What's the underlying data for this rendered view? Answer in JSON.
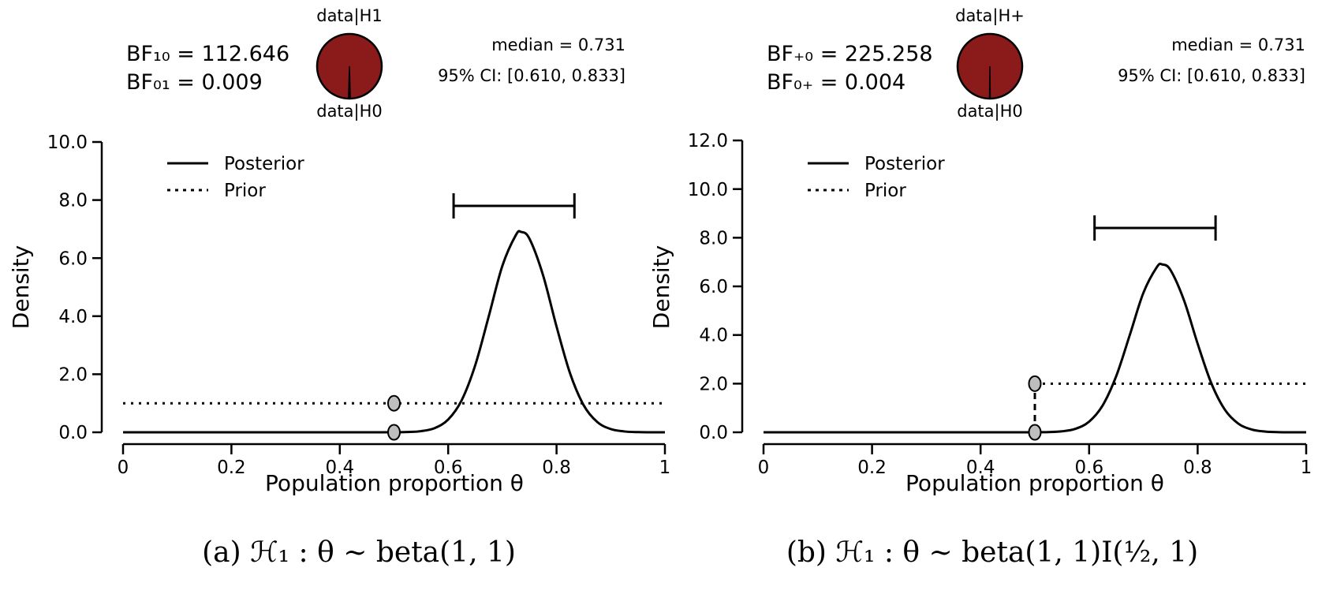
{
  "colors": {
    "background": "#ffffff",
    "line": "#000000",
    "pie_fill": "#8B1A1A",
    "pie_slice": "#000000",
    "marker_fill": "#BEBEBE"
  },
  "panels": [
    {
      "bf_line1": "BF₁₀ = 112.646",
      "bf_line2": "BF₀₁ = 0.009",
      "pie_top_label": "data|H1",
      "pie_bottom_label": "data|H0",
      "median_text": "median = 0.731",
      "ci_text": "95% CI: [0.610, 0.833]",
      "legend_posterior": "Posterior",
      "legend_prior": "Prior",
      "ylabel": "Density",
      "xlabel": "Population proportion θ",
      "caption": "(a) ℋ₁ : θ ∼ beta(1, 1)"
    },
    {
      "bf_line1": "BF₊₀ = 225.258",
      "bf_line2": "BF₀₊ = 0.004",
      "pie_top_label": "data|H+",
      "pie_bottom_label": "data|H0",
      "median_text": "median = 0.731",
      "ci_text": "95% CI: [0.610, 0.833]",
      "legend_posterior": "Posterior",
      "legend_prior": "Prior",
      "ylabel": "Density",
      "xlabel": "Population proportion θ",
      "caption": "(b) ℋ₁ : θ ∼ beta(1, 1)I(¹⁄₂, 1)"
    }
  ],
  "chart_data": [
    {
      "id": "a",
      "type": "line",
      "xlabel": "Population proportion θ",
      "ylabel": "Density",
      "xlim": [
        0,
        1
      ],
      "ylim": [
        0,
        10
      ],
      "x_ticks": [
        0,
        0.2,
        0.4,
        0.6,
        0.8,
        1
      ],
      "x_tick_labels": [
        "0",
        "0.2",
        "0.4",
        "0.6",
        "0.8",
        "1"
      ],
      "y_ticks": [
        0,
        2,
        4,
        6,
        8,
        10
      ],
      "y_tick_labels": [
        "0.0",
        "2.0",
        "4.0",
        "6.0",
        "8.0",
        "10.0"
      ],
      "median": 0.731,
      "ci": {
        "level": "95%",
        "lower": 0.61,
        "upper": 0.833,
        "bar_height_density": 7.8
      },
      "bayes_factors": {
        "BF10": 112.646,
        "BF01": 0.009
      },
      "pie": {
        "labels": [
          "data|H1",
          "data|H0"
        ],
        "values": [
          0.991,
          0.009
        ]
      },
      "posterior": {
        "name": "Posterior",
        "style": "solid",
        "points": [
          [
            0,
            0
          ],
          [
            0.1,
            0
          ],
          [
            0.2,
            0
          ],
          [
            0.3,
            0
          ],
          [
            0.4,
            0
          ],
          [
            0.45,
            0
          ],
          [
            0.475,
            0.001
          ],
          [
            0.5,
            0.002
          ],
          [
            0.525,
            0.009
          ],
          [
            0.55,
            0.039
          ],
          [
            0.575,
            0.144
          ],
          [
            0.6,
            0.439
          ],
          [
            0.625,
            1.107
          ],
          [
            0.65,
            2.314
          ],
          [
            0.675,
            4.003
          ],
          [
            0.7,
            5.733
          ],
          [
            0.725,
            6.797
          ],
          [
            0.735,
            6.9
          ],
          [
            0.75,
            6.669
          ],
          [
            0.775,
            5.417
          ],
          [
            0.8,
            3.642
          ],
          [
            0.825,
            2.027
          ],
          [
            0.85,
            0.934
          ],
          [
            0.875,
            0.356
          ],
          [
            0.9,
            0.112
          ],
          [
            0.925,
            0.029
          ],
          [
            0.95,
            0.006
          ],
          [
            0.975,
            0.001
          ],
          [
            1,
            0
          ]
        ]
      },
      "prior": {
        "name": "Prior",
        "segments": [
          {
            "style": "dotted",
            "points": [
              [
                0,
                1
              ],
              [
                1,
                1
              ]
            ]
          }
        ]
      },
      "markers": [
        [
          0.5,
          1
        ],
        [
          0.5,
          0
        ]
      ]
    },
    {
      "id": "b",
      "type": "line",
      "xlabel": "Population proportion θ",
      "ylabel": "Density",
      "xlim": [
        0,
        1
      ],
      "ylim": [
        0,
        12
      ],
      "x_ticks": [
        0,
        0.2,
        0.4,
        0.6,
        0.8,
        1
      ],
      "x_tick_labels": [
        "0",
        "0.2",
        "0.4",
        "0.6",
        "0.8",
        "1"
      ],
      "y_ticks": [
        0,
        2,
        4,
        6,
        8,
        10,
        12
      ],
      "y_tick_labels": [
        "0.0",
        "2.0",
        "4.0",
        "6.0",
        "8.0",
        "10.0",
        "12.0"
      ],
      "median": 0.731,
      "ci": {
        "level": "95%",
        "lower": 0.61,
        "upper": 0.833,
        "bar_height_density": 8.4
      },
      "bayes_factors": {
        "BF_plus_0": 225.258,
        "BF_0_plus": 0.004
      },
      "pie": {
        "labels": [
          "data|H+",
          "data|H0"
        ],
        "values": [
          0.996,
          0.004
        ]
      },
      "posterior": {
        "name": "Posterior",
        "style": "solid",
        "points": [
          [
            0,
            0
          ],
          [
            0.1,
            0
          ],
          [
            0.2,
            0
          ],
          [
            0.3,
            0
          ],
          [
            0.4,
            0
          ],
          [
            0.45,
            0
          ],
          [
            0.475,
            0.001
          ],
          [
            0.5,
            0.002
          ],
          [
            0.525,
            0.009
          ],
          [
            0.55,
            0.039
          ],
          [
            0.575,
            0.144
          ],
          [
            0.6,
            0.439
          ],
          [
            0.625,
            1.107
          ],
          [
            0.65,
            2.314
          ],
          [
            0.675,
            4.003
          ],
          [
            0.7,
            5.733
          ],
          [
            0.725,
            6.797
          ],
          [
            0.735,
            6.9
          ],
          [
            0.75,
            6.669
          ],
          [
            0.775,
            5.417
          ],
          [
            0.8,
            3.642
          ],
          [
            0.825,
            2.027
          ],
          [
            0.85,
            0.934
          ],
          [
            0.875,
            0.356
          ],
          [
            0.9,
            0.112
          ],
          [
            0.925,
            0.029
          ],
          [
            0.95,
            0.006
          ],
          [
            0.975,
            0.001
          ],
          [
            1,
            0
          ]
        ]
      },
      "prior": {
        "name": "Prior",
        "segments": [
          {
            "style": "dotted",
            "points": [
              [
                0,
                0
              ],
              [
                0.5,
                0
              ]
            ]
          },
          {
            "style": "dashed",
            "points": [
              [
                0.5,
                0
              ],
              [
                0.5,
                2
              ]
            ]
          },
          {
            "style": "dotted",
            "points": [
              [
                0.5,
                2
              ],
              [
                1,
                2
              ]
            ]
          }
        ]
      },
      "markers": [
        [
          0.5,
          2
        ],
        [
          0.5,
          0
        ]
      ]
    }
  ]
}
